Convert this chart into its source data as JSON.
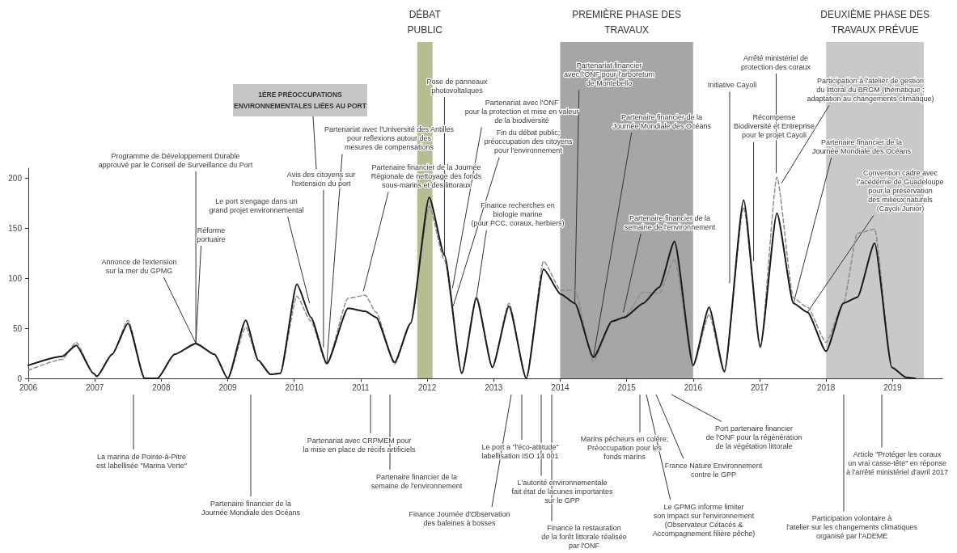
{
  "chart_data": {
    "type": "line",
    "marker": "none",
    "grid": false,
    "x": [
      2006.0,
      2006.51,
      2006.72,
      2006.98,
      2007.03,
      2007.26,
      2007.5,
      2007.75,
      2007.94,
      2008.2,
      2008.52,
      2008.8,
      2009.0,
      2009.27,
      2009.46,
      2009.64,
      2009.79,
      2010.04,
      2010.25,
      2010.49,
      2010.81,
      2011.07,
      2011.23,
      2011.51,
      2011.75,
      2012.03,
      2012.26,
      2012.52,
      2012.74,
      2012.98,
      2013.23,
      2013.49,
      2013.75,
      2014.01,
      2014.22,
      2014.5,
      2014.78,
      2014.97,
      2015.25,
      2015.49,
      2015.72,
      2016.0,
      2016.24,
      2016.47,
      2016.76,
      2017.01,
      2017.26,
      2017.51,
      2017.72,
      2018.0,
      2018.26,
      2018.47,
      2018.73,
      2018.99,
      2019.2,
      2019.34
    ],
    "series": [
      {
        "color": "#1a1a1a",
        "line_style": "solid",
        "values": [
          13,
          22,
          33,
          5,
          2,
          24,
          55,
          0,
          0,
          24,
          35,
          24,
          0,
          58,
          18,
          4,
          5,
          94,
          61,
          15,
          70,
          67,
          61,
          16,
          55,
          181,
          123,
          5,
          80,
          11,
          72,
          0,
          109,
          84,
          75,
          21,
          57,
          61,
          75,
          91,
          137,
          13,
          71,
          7,
          178,
          32,
          165,
          75,
          66,
          27,
          75,
          81,
          135,
          11,
          1,
          0
        ]
      },
      {
        "color": "#8c8c8c",
        "line_style": "dashed",
        "values": [
          8,
          19,
          36,
          5,
          2,
          24,
          58,
          0,
          0,
          24,
          34,
          24,
          0,
          51,
          18,
          4,
          5,
          82,
          57,
          14,
          80,
          83,
          66,
          14,
          55,
          172,
          118,
          5,
          82,
          11,
          75,
          0,
          117,
          88,
          88,
          17,
          57,
          62,
          86,
          85,
          119,
          13,
          64,
          6,
          171,
          30,
          201,
          80,
          71,
          36,
          75,
          145,
          149,
          11,
          1,
          0
        ]
      }
    ],
    "xlim": [
      2006,
      2019.75
    ],
    "xticks": [
      2006,
      2007,
      2008,
      2009,
      2010,
      2011,
      2012,
      2013,
      2014,
      2015,
      2016,
      2017,
      2018,
      2019
    ],
    "ylim": [
      0,
      210
    ],
    "yticks": [
      0,
      50,
      100,
      150,
      200
    ],
    "bands": [
      {
        "axis": "x",
        "from": 2011.85,
        "to": 2012.08,
        "label": "DÉBAT\nPUBLIC",
        "color": "#b7bd92"
      },
      {
        "axis": "x",
        "from": 2014.0,
        "to": 2016.0,
        "label": "PREMIÈRE PHASE DES\nTRAVAUX",
        "color": "#a8a5a5"
      },
      {
        "axis": "x",
        "from": 2018.0,
        "to": 2019.47,
        "label": "DEUXIÈME PHASE DES\nTRAVAUX PRÉVUE",
        "color": "#cbc8c8"
      }
    ],
    "annotations": [
      {
        "text": "Programme de Développement Durable\napprouvé par le Conseil de Surveillance du Port",
        "x": 2008.52,
        "y": 35
      },
      {
        "text": "Annonce de l'extension\nsur la mer du GPMG",
        "x": 2008.52,
        "y": 35
      },
      {
        "text": "Réforme\nportuaire",
        "x": 2008.52,
        "y": 35
      },
      {
        "text": "Le port s'engage dans un\ngrand projet environnemental",
        "x": 2010.23,
        "y": 75
      },
      {
        "text": "Avis des citoyens sur\nl'extension du port",
        "x": 2010.44,
        "y": 31
      },
      "1ÈRE PRÉOCCUPATIONS\nENVIRONNEMENTALES LIÉES AU PORT",
      {
        "text": "Partenariat avec l'Université des Antilles\npour reflexions autour des\nmesures de compensations",
        "x": 2010.49,
        "y": 15
      },
      {
        "text": "Partenaire financier de la Journée\nRégionale de nettoyage des fonds\nsous-marins et des littoraux",
        "x": 2011.04,
        "y": 87
      },
      {
        "text": "Pose de panneaux\nphotovoltaïques",
        "x": 2012.26,
        "y": 123
      },
      {
        "text": "Partenariat avec l'ONF\npour la protection et mise en valeur\nde la biodiversité",
        "x": 2012.38,
        "y": 90
      },
      {
        "text": "Fin du débat public;\npréoccupation des citoyens\npour l'environnement",
        "x": 2012.39,
        "y": 72
      },
      {
        "text": "Finance recherches en\nbiologie marine\n(pour PCC, coraux, herbiers)",
        "x": 2012.74,
        "y": 80
      },
      {
        "text": "Partenariat financier\navec l'ONF pour l'arboretum\nde Montebello",
        "x": 2014.22,
        "y": 75
      },
      {
        "text": "Partenaire financier de la\nJournée Mondiale des Océans",
        "x": 2014.5,
        "y": 21
      },
      {
        "text": "Partenaire financier de la\nsemaine de l'environnement",
        "x": 2014.95,
        "y": 66
      },
      {
        "text": "Initiative Cayoli",
        "x": 2016.55,
        "y": 95
      },
      {
        "text": "Arrêté ministériel de\nprotection des coraux",
        "x": 2017.25,
        "y": 205
      },
      {
        "text": "Récompense\nBiodiversité et Entreprise\npour le projet Cayoli",
        "x": 2016.91,
        "y": 117
      },
      {
        "text": "Participation à l'atelier de gestion\ndu littoral du BRGM (thématique :\nadaptation au changements climatique)",
        "x": 2017.33,
        "y": 195
      },
      {
        "text": "Partenaire financier de la\nJournée Mondiale des Océans",
        "x": 2017.51,
        "y": 75
      },
      {
        "text": "Convention cadre avec\nl'acédémie de Guadeloupe\npour la préservation\ndes milieux naturels\n(Cayoli-Junior)",
        "x": 2017.72,
        "y": 66
      },
      "La marina de Pointe-à-Pitre\nest labellisée \"Marina Verte\"",
      "Partenaire financier de la\nJournée Mondiale des Océans",
      "Partenariat avec CRPMEM pour\nla mise en place de récifs artificiels",
      "Partenaire financier de la\nsemaine de l'environnement",
      "Finance Journée d'Observation\ndes baleines à bosses",
      "Le port a \"l'éco-attitude\"\nlabellisation ISO 14 001",
      "L'autorité environnementale\nfait état de lacunes importantes\nsur le GPP",
      "Finance la restauration\nde la forêt littorale réalisée\npar l'ONF",
      "Marins pêcheurs en colère;\nPréoccupation pour les\nfonds marins",
      "France Nature Environnement\ncontre le GPP",
      "Le GPMG informe limiter\nson impact sur l'environnement\n(Observateur Cétacés &\nAccompagnement filière pêche)",
      "Port partenaire financier\nde l'ONF pour la régénération\nde la végétation littorale",
      "Participation volontaire à\nl'atelier sur les changements climatiques\norganisé par l'ADEME",
      "Article \"Protéger les coraux\nun vrai casse-tête\" en réponse\nà l'arrêté ministériel d'avril 2017"
    ]
  }
}
